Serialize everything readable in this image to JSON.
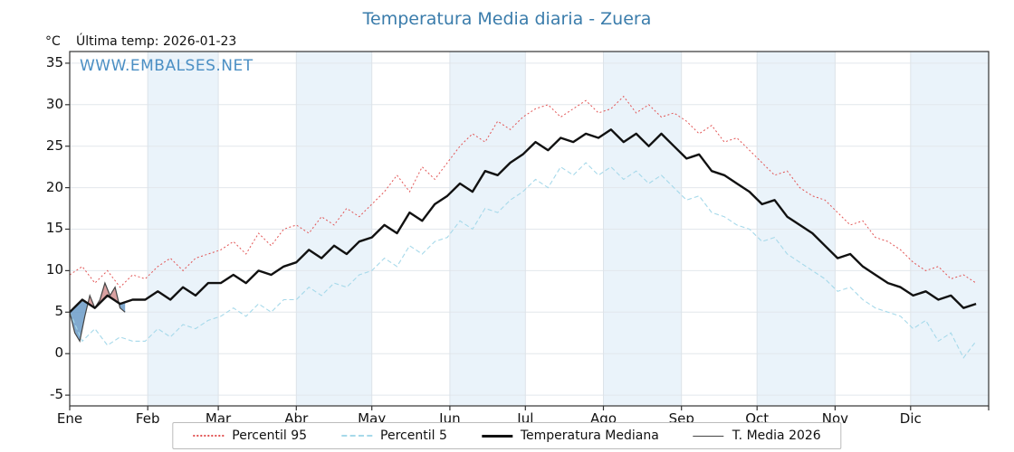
{
  "header": {
    "y_unit": "°C",
    "last_temp_label": "Última temp: 2026-01-23"
  },
  "watermark": "WWW.EMBALSES.NET",
  "chart_data": {
    "type": "line",
    "title": "Temperatura Media diaria - Zuera",
    "x_unit": "day_of_year",
    "months": [
      "Ene",
      "Feb",
      "Mar",
      "Abr",
      "May",
      "Jun",
      "Jul",
      "Ago",
      "Sep",
      "Oct",
      "Nov",
      "Dic"
    ],
    "month_start_days": [
      0,
      31,
      59,
      90,
      120,
      151,
      181,
      212,
      243,
      273,
      304,
      334,
      365
    ],
    "shaded_months": [
      "Feb",
      "Abr",
      "Jun",
      "Ago",
      "Oct",
      "Dic"
    ],
    "band_color": "#eaf3fa",
    "ylim": [
      -6.3,
      36.4
    ],
    "yticks": [
      -5,
      0,
      5,
      10,
      15,
      20,
      25,
      30,
      35
    ],
    "grid": true,
    "legend_position": "bottom",
    "sample_step_days": 5,
    "series": [
      {
        "name": "Percentil 95",
        "color": "#e25555",
        "style": "dotted",
        "values": [
          9.5,
          10.5,
          8.5,
          10,
          8,
          9.5,
          9,
          10.5,
          11.5,
          10,
          11.5,
          12,
          12.5,
          13.5,
          12,
          14.5,
          13,
          15,
          15.5,
          14.5,
          16.5,
          15.5,
          17.5,
          16.5,
          18,
          19.5,
          21.5,
          19.5,
          22.5,
          21,
          23,
          25,
          26.5,
          25.5,
          28,
          27,
          28.5,
          29.5,
          30,
          28.5,
          29.5,
          30.5,
          29,
          29.5,
          31,
          29,
          30,
          28.5,
          29,
          28,
          26.5,
          27.5,
          25.5,
          26,
          24.5,
          23,
          21.5,
          22,
          20,
          19,
          18.5,
          17,
          15.5,
          16,
          14,
          13.5,
          12.5,
          11,
          10,
          10.5,
          9,
          9.5,
          8.5
        ]
      },
      {
        "name": "Percentil 5",
        "color": "#a6d9ea",
        "style": "dashed",
        "values": [
          5,
          1.5,
          3,
          1,
          2,
          1.5,
          1.5,
          3,
          2,
          3.5,
          3,
          4,
          4.5,
          5.5,
          4.5,
          6,
          5,
          6.5,
          6.5,
          8,
          7,
          8.5,
          8,
          9.5,
          10,
          11.5,
          10.5,
          13,
          12,
          13.5,
          14,
          16,
          15,
          17.5,
          17,
          18.5,
          19.5,
          21,
          20,
          22.5,
          21.5,
          23,
          21.5,
          22.5,
          21,
          22,
          20.5,
          21.5,
          20,
          18.5,
          19,
          17,
          16.5,
          15.5,
          15,
          13.5,
          14,
          12,
          11,
          10,
          9,
          7.5,
          8,
          6.5,
          5.5,
          5,
          4.5,
          3,
          4,
          1.5,
          2.5,
          -0.5,
          1.5
        ]
      },
      {
        "name": "Temperatura Mediana",
        "color": "#111111",
        "style": "solid_thick",
        "values": [
          5,
          6.5,
          5.5,
          7,
          6,
          6.5,
          6.5,
          7.5,
          6.5,
          8,
          7,
          8.5,
          8.5,
          9.5,
          8.5,
          10,
          9.5,
          10.5,
          11,
          12.5,
          11.5,
          13,
          12,
          13.5,
          14,
          15.5,
          14.5,
          17,
          16,
          18,
          19,
          20.5,
          19.5,
          22,
          21.5,
          23,
          24,
          25.5,
          24.5,
          26,
          25.5,
          26.5,
          26,
          27,
          25.5,
          26.5,
          25,
          26.5,
          25,
          23.5,
          24,
          22,
          21.5,
          20.5,
          19.5,
          18,
          18.5,
          16.5,
          15.5,
          14.5,
          13,
          11.5,
          12,
          10.5,
          9.5,
          8.5,
          8,
          7,
          7.5,
          6.5,
          7,
          5.5,
          6
        ]
      },
      {
        "name": "T. Media 2026",
        "color": "#444444",
        "style": "solid_thin",
        "x_days": [
          0,
          2,
          4,
          6,
          8,
          10,
          12,
          14,
          16,
          18,
          20,
          22
        ],
        "values": [
          5,
          2.5,
          1.5,
          4.5,
          7,
          5.5,
          6.5,
          8.5,
          7,
          8,
          5.5,
          5
        ]
      }
    ],
    "fills": {
      "above_median_color": "#d49090",
      "below_median_color": "#6b9bc8",
      "opacity": 0.85
    }
  },
  "legend": {
    "items": [
      {
        "label": "Percentil 95"
      },
      {
        "label": "Percentil 5"
      },
      {
        "label": "Temperatura Mediana"
      },
      {
        "label": "T. Media 2026"
      }
    ]
  }
}
